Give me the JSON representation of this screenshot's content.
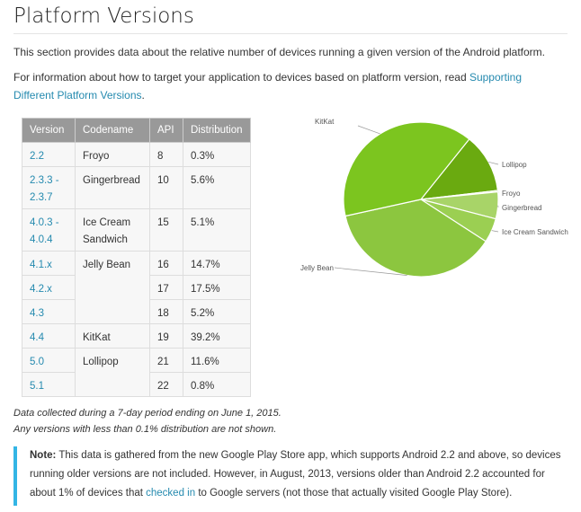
{
  "title": "Platform Versions",
  "intro": "This section provides data about the relative number of devices running a given version of the Android platform.",
  "info_prefix": "For information about how to target your application to devices based on platform version, read ",
  "info_link": "Supporting Different Platform Versions",
  "info_suffix": ".",
  "table": {
    "headers": [
      "Version",
      "Codename",
      "API",
      "Distribution"
    ],
    "rows": [
      {
        "version": "2.2",
        "codename": "Froyo",
        "api": "8",
        "dist": "0.3%"
      },
      {
        "version": "2.3.3 - 2.3.7",
        "codename": "Gingerbread",
        "api": "10",
        "dist": "5.6%"
      },
      {
        "version": "4.0.3 - 4.0.4",
        "codename": "Ice Cream Sandwich",
        "api": "15",
        "dist": "5.1%"
      },
      {
        "version": "4.1.x",
        "codename": "Jelly Bean",
        "api": "16",
        "dist": "14.7%"
      },
      {
        "version": "4.2.x",
        "codename": "",
        "api": "17",
        "dist": "17.5%"
      },
      {
        "version": "4.3",
        "codename": "",
        "api": "18",
        "dist": "5.2%"
      },
      {
        "version": "4.4",
        "codename": "KitKat",
        "api": "19",
        "dist": "39.2%"
      },
      {
        "version": "5.0",
        "codename": "Lollipop",
        "api": "21",
        "dist": "11.6%"
      },
      {
        "version": "5.1",
        "codename": "",
        "api": "22",
        "dist": "0.8%"
      }
    ]
  },
  "footnote_line1": "Data collected during a 7-day period ending on June 1, 2015.",
  "footnote_line2": "Any versions with less than 0.1% distribution are not shown.",
  "note_label": "Note:",
  "note_text_1": " This data is gathered from the new Google Play Store app, which supports Android 2.2 and above, so devices running older versions are not included. However, in August, 2013, versions older than Android 2.2 accounted for about 1% of devices that ",
  "note_link": "checked in",
  "note_text_2": " to Google servers (not those that actually visited Google Play Store).",
  "colors": {
    "link": "#258aaf",
    "note_bar": "#33b5e5",
    "header_bg": "#999999"
  },
  "chart_data": {
    "type": "pie",
    "slices": [
      {
        "label": "KitKat",
        "value": 39.2,
        "color": "#7cc51f"
      },
      {
        "label": "Lollipop",
        "value": 12.4,
        "color": "#6aaa10"
      },
      {
        "label": "Froyo",
        "value": 0.3,
        "color": "#c0e08a"
      },
      {
        "label": "Gingerbread",
        "value": 5.6,
        "color": "#a8d468"
      },
      {
        "label": "Ice Cream Sandwich",
        "value": 5.1,
        "color": "#9bcf52"
      },
      {
        "label": "Jelly Bean",
        "value": 37.4,
        "color": "#8cc63f"
      }
    ]
  }
}
